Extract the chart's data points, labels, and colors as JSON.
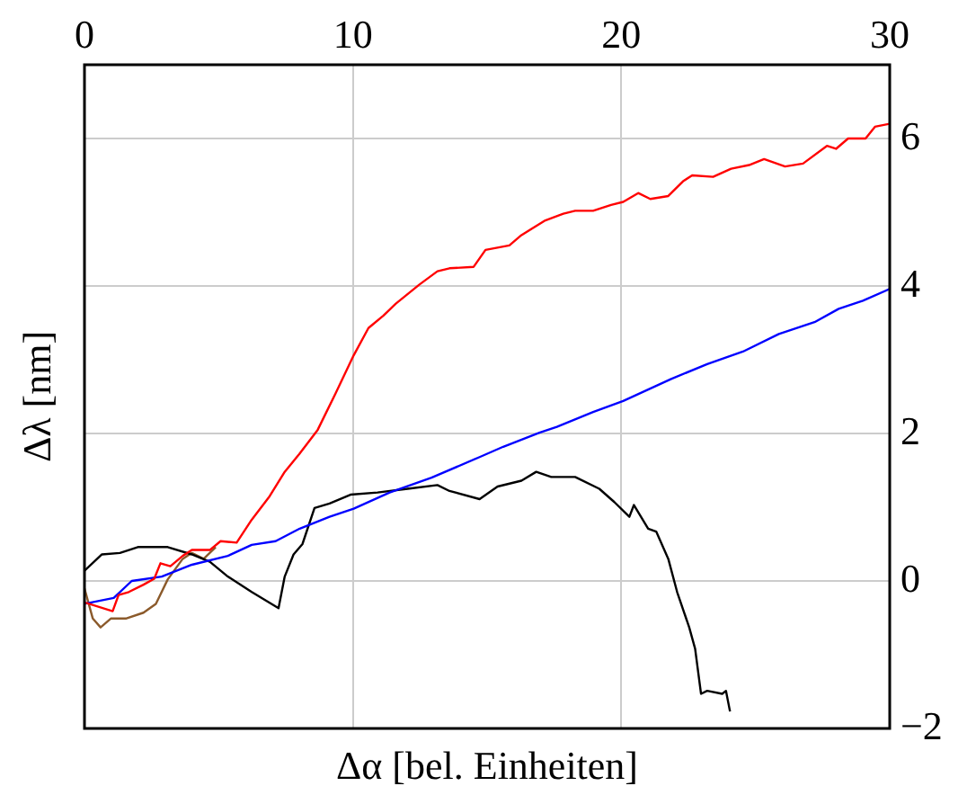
{
  "chart_data": {
    "type": "line",
    "xlabel": "Δα [bel. Einheiten]",
    "ylabel": "Δλ [nm]",
    "xlim": [
      0,
      30
    ],
    "xticks": [
      0,
      10,
      20,
      30
    ],
    "ylim": [
      -2,
      7
    ],
    "yticks": [
      {
        "value": -2,
        "label": "−2"
      },
      0,
      2,
      4,
      6
    ],
    "grid": true,
    "marker": "none",
    "tick_labels": "xy",
    "series": [
      {
        "color": "#ff0000",
        "x": [
          0,
          1.05,
          1.27,
          1.65,
          2.2,
          2.6,
          2.83,
          3.2,
          3.66,
          4.0,
          4.67,
          5.07,
          5.67,
          6.23,
          6.9,
          7.46,
          8.0,
          8.69,
          9.35,
          10.03,
          10.58,
          11.14,
          11.6,
          12.48,
          13.15,
          13.6,
          14.5,
          14.94,
          15.83,
          16.28,
          17.17,
          17.84,
          18.28,
          18.95,
          19.62,
          20.07,
          20.63,
          21.08,
          21.75,
          22.3,
          22.64,
          23.42,
          24.09,
          24.76,
          25.32,
          26.1,
          26.77,
          27.66,
          28.0,
          28.45,
          29.1,
          29.45,
          30
        ],
        "values": [
          -0.29,
          -0.41,
          -0.19,
          -0.15,
          -0.05,
          0.03,
          0.24,
          0.2,
          0.34,
          0.42,
          0.42,
          0.54,
          0.52,
          0.83,
          1.15,
          1.48,
          1.72,
          2.05,
          2.54,
          3.06,
          3.43,
          3.6,
          3.76,
          4.02,
          4.2,
          4.24,
          4.26,
          4.49,
          4.55,
          4.69,
          4.89,
          4.98,
          5.02,
          5.02,
          5.1,
          5.14,
          5.26,
          5.18,
          5.22,
          5.42,
          5.5,
          5.48,
          5.59,
          5.64,
          5.72,
          5.62,
          5.66,
          5.9,
          5.86,
          6.0,
          6.0,
          6.16,
          6.2
        ]
      },
      {
        "color": "#0000ff",
        "x": [
          0,
          1.09,
          1.76,
          2.88,
          4.0,
          5.34,
          6.23,
          7.12,
          8.02,
          9.13,
          10.03,
          11.37,
          12.93,
          14.72,
          15.6,
          16.95,
          17.6,
          18.95,
          20.07,
          21.86,
          23.2,
          24.53,
          25.87,
          27.2,
          28.1,
          29.0,
          30
        ],
        "values": [
          -0.31,
          -0.23,
          0,
          0.06,
          0.22,
          0.34,
          0.49,
          0.54,
          0.71,
          0.87,
          0.98,
          1.2,
          1.4,
          1.68,
          1.82,
          2.01,
          2.09,
          2.29,
          2.44,
          2.74,
          2.94,
          3.11,
          3.35,
          3.51,
          3.69,
          3.8,
          3.96
        ]
      },
      {
        "color": "#000000",
        "x": [
          0,
          0.65,
          1.32,
          1.99,
          3.1,
          4.0,
          4.67,
          5.34,
          6.23,
          7.23,
          7.46,
          7.79,
          8.12,
          8.57,
          9.13,
          9.91,
          10.92,
          12.04,
          13.15,
          13.6,
          14.72,
          15.39,
          16.28,
          16.83,
          17.39,
          18.28,
          19.18,
          19.74,
          20.3,
          20.47,
          21.0,
          21.3,
          21.75,
          22.08,
          22.53,
          22.75,
          22.97,
          23.2,
          23.76,
          23.9,
          24.05
        ],
        "values": [
          0.14,
          0.36,
          0.38,
          0.46,
          0.46,
          0.36,
          0.26,
          0.06,
          -0.15,
          -0.37,
          0.06,
          0.36,
          0.5,
          0.99,
          1.05,
          1.17,
          1.2,
          1.25,
          1.3,
          1.22,
          1.11,
          1.28,
          1.36,
          1.48,
          1.41,
          1.41,
          1.25,
          1.07,
          0.87,
          1.03,
          0.71,
          0.67,
          0.3,
          -0.15,
          -0.63,
          -0.92,
          -1.53,
          -1.49,
          -1.53,
          -1.49,
          -1.77
        ]
      },
      {
        "color": "#8b5a2b",
        "x": [
          0,
          0.31,
          0.6,
          0.98,
          1.54,
          2.2,
          2.66,
          3.1,
          3.66,
          4.0,
          4.44,
          4.89
        ],
        "values": [
          -0.1,
          -0.51,
          -0.63,
          -0.51,
          -0.51,
          -0.43,
          -0.31,
          0.02,
          0.3,
          0.38,
          0.3,
          0.46
        ]
      }
    ]
  }
}
